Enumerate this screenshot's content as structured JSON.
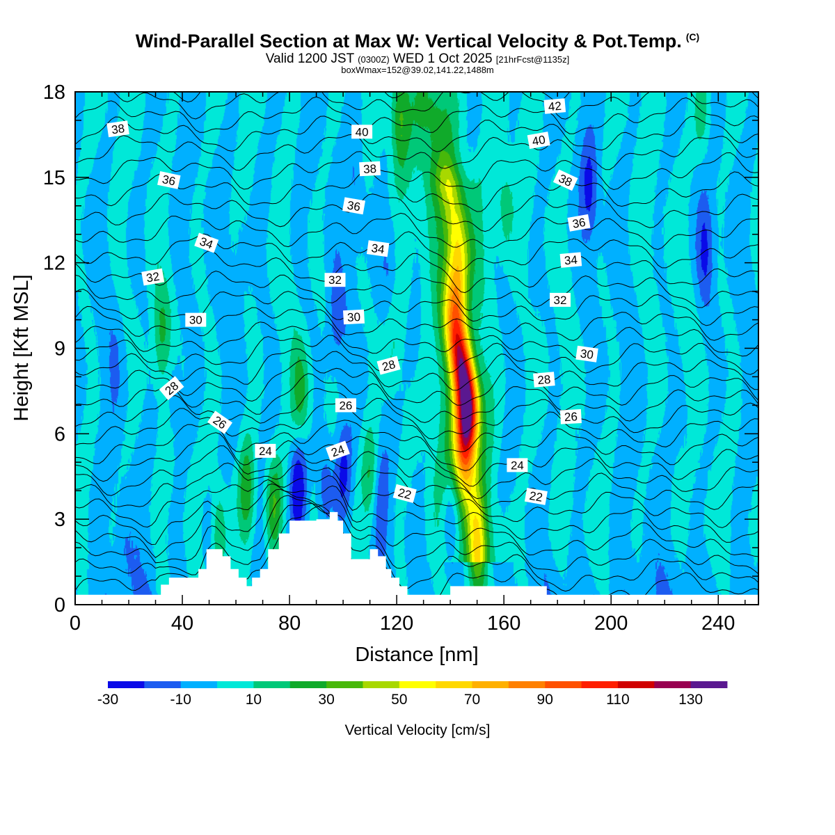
{
  "header": {
    "title": "Wind-Parallel Section at Max W: Vertical Velocity & Pot.Temp.",
    "title_mark": "(C)",
    "valid_prefix": "Valid 1200 JST",
    "valid_utc": "(0300Z)",
    "valid_date": "WED 1 Oct 2025",
    "forecast_info": "[21hrFcst@1135z]",
    "box_info": "boxWmax=152@39.02,141.22,1488m"
  },
  "chart_data": {
    "type": "heatmap",
    "title": "Wind-Parallel Section at Max W: Vertical Velocity & Pot.Temp.",
    "xlabel": "Distance [nm]",
    "ylabel": "Height [Kft MSL]",
    "xlim": [
      0,
      255
    ],
    "ylim": [
      0,
      18
    ],
    "x_ticks": [
      0,
      40,
      80,
      120,
      160,
      200,
      240
    ],
    "y_ticks": [
      0,
      3,
      6,
      9,
      12,
      15,
      18
    ],
    "colorbar": {
      "label": "Vertical Velocity [cm/s]",
      "bounds": [
        -30,
        -20,
        -10,
        0,
        10,
        20,
        30,
        40,
        50,
        60,
        70,
        80,
        90,
        100,
        110,
        120,
        130,
        140
      ],
      "tick_labels": [
        "-30",
        "-10",
        "10",
        "30",
        "50",
        "70",
        "90",
        "110",
        "130"
      ],
      "colors": [
        "#0a0ae8",
        "#1c5cf0",
        "#00b0ff",
        "#00e8d8",
        "#00c878",
        "#10aa2a",
        "#48b80a",
        "#a8d800",
        "#ffff00",
        "#ffd800",
        "#ffb000",
        "#ff8000",
        "#ff5000",
        "#ff1e00",
        "#d00000",
        "#980050",
        "#5a1890"
      ]
    },
    "background_value": 0,
    "updraft_core": {
      "center_nm": 145,
      "base_kft": 3.0,
      "top_kft": 14.5,
      "peak_value_cm_s": 135,
      "peak_height_kft": 7.0
    },
    "velocity_features": [
      {
        "type": "up",
        "x_nm": 53,
        "y_kft": 2.5,
        "value": 25
      },
      {
        "type": "up",
        "x_nm": 64,
        "y_kft": 4.0,
        "value": 30
      },
      {
        "type": "up",
        "x_nm": 74,
        "y_kft": 3.5,
        "value": 30
      },
      {
        "type": "up",
        "x_nm": 84,
        "y_kft": 7.5,
        "value": 22
      },
      {
        "type": "up",
        "x_nm": 110,
        "y_kft": 4.5,
        "value": 22
      },
      {
        "type": "up",
        "x_nm": 118,
        "y_kft": 9.0,
        "value": 15
      },
      {
        "type": "up",
        "x_nm": 32,
        "y_kft": 9.5,
        "value": 18
      },
      {
        "type": "up",
        "x_nm": 150,
        "y_kft": 2.0,
        "value": 35
      },
      {
        "type": "up",
        "x_nm": 160,
        "y_kft": 14.0,
        "value": 14
      },
      {
        "type": "up",
        "x_nm": 234,
        "y_kft": 17.3,
        "value": 18
      },
      {
        "type": "up",
        "x_nm": 121,
        "y_kft": 17.0,
        "value": 26
      },
      {
        "type": "down",
        "x_nm": 83,
        "y_kft": 4.2,
        "value": -30
      },
      {
        "type": "down",
        "x_nm": 93,
        "y_kft": 4.2,
        "value": -20
      },
      {
        "type": "down",
        "x_nm": 100,
        "y_kft": 4.5,
        "value": -20
      },
      {
        "type": "down",
        "x_nm": 50,
        "y_kft": 2.5,
        "value": -15
      },
      {
        "type": "down",
        "x_nm": 37,
        "y_kft": 7.3,
        "value": -12
      },
      {
        "type": "down",
        "x_nm": 140,
        "y_kft": 3.0,
        "value": -22
      },
      {
        "type": "down",
        "x_nm": 114,
        "y_kft": 3.5,
        "value": -15
      },
      {
        "type": "down",
        "x_nm": 126,
        "y_kft": 9.5,
        "value": -15
      },
      {
        "type": "down",
        "x_nm": 97,
        "y_kft": 10.0,
        "value": -15
      },
      {
        "type": "down",
        "x_nm": 117,
        "y_kft": 12.2,
        "value": -12
      },
      {
        "type": "down",
        "x_nm": 105,
        "y_kft": 14.5,
        "value": -12
      },
      {
        "type": "down",
        "x_nm": 192,
        "y_kft": 14.5,
        "value": -20
      },
      {
        "type": "down",
        "x_nm": 235,
        "y_kft": 12.5,
        "value": -20
      },
      {
        "type": "down",
        "x_nm": 15,
        "y_kft": 8.5,
        "value": -6
      },
      {
        "type": "down",
        "x_nm": 228,
        "y_kft": 6.0,
        "value": -6
      },
      {
        "type": "down",
        "x_nm": 186,
        "y_kft": 6.5,
        "value": -6
      },
      {
        "type": "down",
        "x_nm": 62,
        "y_kft": 12.0,
        "value": -6
      },
      {
        "type": "down",
        "x_nm": 70,
        "y_kft": 14.5,
        "value": -8
      },
      {
        "type": "down",
        "x_nm": 22,
        "y_kft": 13.0,
        "value": -6
      },
      {
        "type": "down",
        "x_nm": 170,
        "y_kft": 11.0,
        "value": -6
      },
      {
        "type": "down",
        "x_nm": 18,
        "y_kft": 2.0,
        "value": -8
      }
    ],
    "terrain": {
      "x_nm": [
        0,
        10,
        20,
        30,
        32,
        35,
        40,
        46,
        49,
        52,
        55,
        58,
        61,
        64,
        66,
        69,
        72,
        76,
        80,
        83,
        86,
        90,
        95,
        98,
        100,
        103,
        106,
        110,
        113,
        116,
        118,
        121,
        124,
        128,
        130,
        134,
        140,
        144,
        148,
        152,
        156,
        160,
        168,
        176,
        180,
        200,
        220,
        240,
        255
      ],
      "height_kft": [
        0.35,
        0.35,
        0.35,
        0.35,
        0.7,
        0.95,
        0.95,
        1.25,
        1.95,
        1.95,
        1.7,
        1.25,
        0.95,
        0.65,
        0.95,
        1.25,
        1.95,
        2.5,
        2.95,
        2.95,
        2.95,
        3.0,
        3.25,
        2.95,
        2.5,
        1.6,
        1.6,
        1.95,
        1.7,
        1.25,
        0.95,
        0.65,
        0.35,
        0.35,
        0.35,
        0.35,
        0.65,
        0.65,
        0.65,
        0.65,
        0.65,
        0.65,
        0.65,
        0.35,
        0.35,
        0.35,
        0.35,
        0.35,
        0.35
      ]
    },
    "potential_temperature": {
      "levels": [
        14,
        15,
        16,
        17,
        18,
        19,
        20,
        21,
        22,
        23,
        24,
        25,
        26,
        27,
        28,
        29,
        30,
        31,
        32,
        33,
        34,
        35,
        36,
        37,
        38,
        39,
        40,
        41,
        42,
        43,
        44
      ],
      "base_height_kft": [
        0.2,
        0.8,
        1.4,
        2.0,
        2.6,
        3.2,
        3.8,
        4.35,
        4.9,
        5.45,
        6.0,
        6.5,
        7.0,
        7.55,
        8.1,
        8.65,
        9.2,
        9.8,
        10.4,
        11.0,
        11.7,
        12.4,
        13.1,
        13.8,
        14.5,
        15.2,
        15.9,
        16.5,
        17.1,
        17.7,
        18.3
      ],
      "labels": [
        {
          "text": "38",
          "x_nm": 16,
          "y_kft": 16.7
        },
        {
          "text": "36",
          "x_nm": 35,
          "y_kft": 14.9
        },
        {
          "text": "34",
          "x_nm": 49,
          "y_kft": 12.7
        },
        {
          "text": "32",
          "x_nm": 29,
          "y_kft": 11.5
        },
        {
          "text": "30",
          "x_nm": 45,
          "y_kft": 10.0
        },
        {
          "text": "28",
          "x_nm": 36,
          "y_kft": 7.6
        },
        {
          "text": "26",
          "x_nm": 54,
          "y_kft": 6.4
        },
        {
          "text": "24",
          "x_nm": 71,
          "y_kft": 5.4
        },
        {
          "text": "40",
          "x_nm": 107,
          "y_kft": 16.6
        },
        {
          "text": "38",
          "x_nm": 110,
          "y_kft": 15.3
        },
        {
          "text": "36",
          "x_nm": 104,
          "y_kft": 14.0
        },
        {
          "text": "34",
          "x_nm": 113,
          "y_kft": 12.5
        },
        {
          "text": "32",
          "x_nm": 97,
          "y_kft": 11.4
        },
        {
          "text": "30",
          "x_nm": 104,
          "y_kft": 10.1
        },
        {
          "text": "28",
          "x_nm": 117,
          "y_kft": 8.4
        },
        {
          "text": "26",
          "x_nm": 101,
          "y_kft": 7.0
        },
        {
          "text": "24",
          "x_nm": 98,
          "y_kft": 5.4
        },
        {
          "text": "22",
          "x_nm": 123,
          "y_kft": 3.9
        },
        {
          "text": "42",
          "x_nm": 179,
          "y_kft": 17.5
        },
        {
          "text": "40",
          "x_nm": 173,
          "y_kft": 16.3
        },
        {
          "text": "38",
          "x_nm": 183,
          "y_kft": 14.9
        },
        {
          "text": "36",
          "x_nm": 188,
          "y_kft": 13.4
        },
        {
          "text": "34",
          "x_nm": 185,
          "y_kft": 12.1
        },
        {
          "text": "32",
          "x_nm": 181,
          "y_kft": 10.7
        },
        {
          "text": "30",
          "x_nm": 191,
          "y_kft": 8.8
        },
        {
          "text": "28",
          "x_nm": 175,
          "y_kft": 7.9
        },
        {
          "text": "26",
          "x_nm": 185,
          "y_kft": 6.6
        },
        {
          "text": "24",
          "x_nm": 165,
          "y_kft": 4.9
        },
        {
          "text": "22",
          "x_nm": 172,
          "y_kft": 3.8
        }
      ]
    }
  }
}
